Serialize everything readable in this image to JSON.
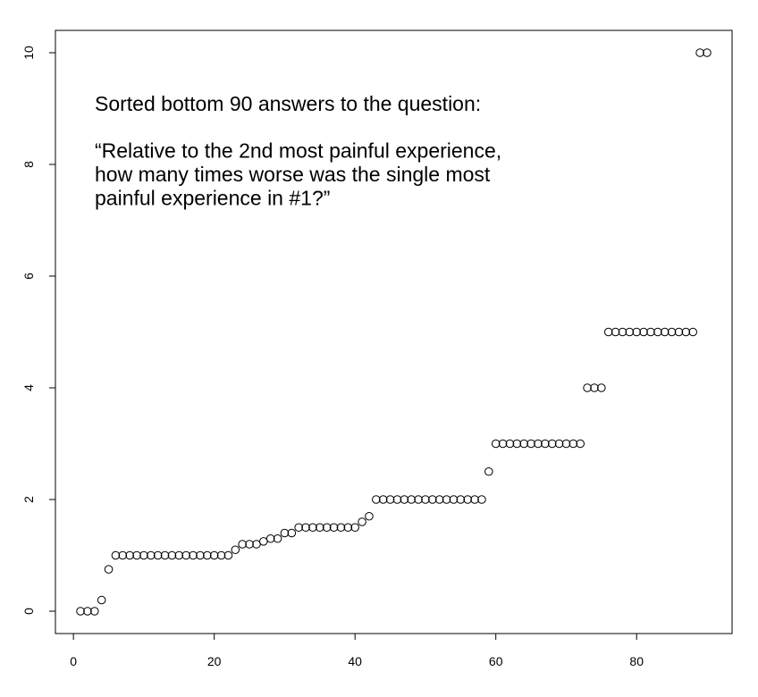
{
  "chart_data": {
    "type": "scatter",
    "annotation": [
      "Sorted bottom 90 answers to the question:",
      "“Relative to the 2nd most painful experience,",
      "how many times worse was the single most",
      "painful experience in #1?”"
    ],
    "x": [
      1,
      2,
      3,
      4,
      5,
      6,
      7,
      8,
      9,
      10,
      11,
      12,
      13,
      14,
      15,
      16,
      17,
      18,
      19,
      20,
      21,
      22,
      23,
      24,
      25,
      26,
      27,
      28,
      29,
      30,
      31,
      32,
      33,
      34,
      35,
      36,
      37,
      38,
      39,
      40,
      41,
      42,
      43,
      44,
      45,
      46,
      47,
      48,
      49,
      50,
      51,
      52,
      53,
      54,
      55,
      56,
      57,
      58,
      59,
      60,
      61,
      62,
      63,
      64,
      65,
      66,
      67,
      68,
      69,
      70,
      71,
      72,
      73,
      74,
      75,
      76,
      77,
      78,
      79,
      80,
      81,
      82,
      83,
      84,
      85,
      86,
      87,
      88,
      89,
      90
    ],
    "values": [
      0,
      0,
      0,
      0.2,
      0.75,
      1,
      1,
      1,
      1,
      1,
      1,
      1,
      1,
      1,
      1,
      1,
      1,
      1,
      1,
      1,
      1,
      1,
      1.1,
      1.2,
      1.2,
      1.2,
      1.25,
      1.3,
      1.3,
      1.4,
      1.4,
      1.5,
      1.5,
      1.5,
      1.5,
      1.5,
      1.5,
      1.5,
      1.5,
      1.5,
      1.6,
      1.7,
      2,
      2,
      2,
      2,
      2,
      2,
      2,
      2,
      2,
      2,
      2,
      2,
      2,
      2,
      2,
      2,
      2.5,
      3,
      3,
      3,
      3,
      3,
      3,
      3,
      3,
      3,
      3,
      3,
      3,
      3,
      4,
      4,
      4,
      5,
      5,
      5,
      5,
      5,
      5,
      5,
      5,
      5,
      5,
      5,
      5,
      5,
      10,
      10
    ],
    "color": "#000000",
    "xlim": [
      -2.56,
      93.56
    ],
    "ylim": [
      -0.4,
      10.4
    ],
    "xticks": [
      0,
      20,
      40,
      60,
      80
    ],
    "yticks": [
      0,
      2,
      4,
      6,
      8,
      10
    ]
  }
}
